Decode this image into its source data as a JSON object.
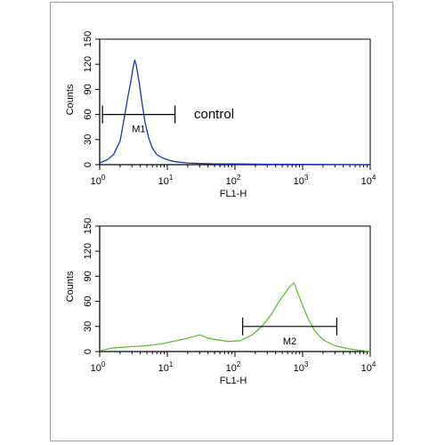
{
  "chart_data": [
    {
      "type": "area",
      "title": "",
      "annotation": "control",
      "xlabel": "FL1-H",
      "ylabel": "Counts",
      "xscale": "log",
      "xlim": [
        1,
        10000
      ],
      "ylim": [
        0,
        150
      ],
      "x_tick_labels": [
        {
          "base": "10",
          "exp": "0"
        },
        {
          "base": "10",
          "exp": "1"
        },
        {
          "base": "10",
          "exp": "2"
        },
        {
          "base": "10",
          "exp": "3"
        },
        {
          "base": "10",
          "exp": "4"
        }
      ],
      "y_ticks": [
        "0",
        "30",
        "60",
        "90",
        "120",
        "150"
      ],
      "color": "#1f2fb0",
      "marker": {
        "label": "M1",
        "x_start": 1.1,
        "x_end": 13,
        "y": 60
      },
      "series": [
        {
          "values": [
            [
              1.0,
              2
            ],
            [
              1.3,
              6
            ],
            [
              1.6,
              12
            ],
            [
              2.0,
              28
            ],
            [
              2.3,
              55
            ],
            [
              2.6,
              80
            ],
            [
              2.9,
              100
            ],
            [
              3.1,
              115
            ],
            [
              3.3,
              125
            ],
            [
              3.5,
              118
            ],
            [
              3.8,
              100
            ],
            [
              4.2,
              75
            ],
            [
              4.7,
              50
            ],
            [
              5.3,
              32
            ],
            [
              6.0,
              20
            ],
            [
              7.0,
              12
            ],
            [
              8.5,
              8
            ],
            [
              10,
              6
            ],
            [
              12,
              4
            ],
            [
              15,
              3
            ],
            [
              20,
              2
            ],
            [
              30,
              1.5
            ],
            [
              50,
              1
            ],
            [
              100,
              0.8
            ],
            [
              300,
              0.5
            ],
            [
              1000,
              0.3
            ],
            [
              10000,
              0
            ]
          ]
        }
      ]
    },
    {
      "type": "area",
      "title": "",
      "xlabel": "FL1-H",
      "ylabel": "Counts",
      "xscale": "log",
      "xlim": [
        1,
        10000
      ],
      "ylim": [
        0,
        150
      ],
      "x_tick_labels": [
        {
          "base": "10",
          "exp": "0"
        },
        {
          "base": "10",
          "exp": "1"
        },
        {
          "base": "10",
          "exp": "2"
        },
        {
          "base": "10",
          "exp": "3"
        },
        {
          "base": "10",
          "exp": "4"
        }
      ],
      "y_ticks": [
        "0",
        "30",
        "60",
        "90",
        "120",
        "150"
      ],
      "color": "#5cbf3a",
      "marker": {
        "label": "M2",
        "x_start": 130,
        "x_end": 3200,
        "y": 30
      },
      "series": [
        {
          "values": [
            [
              1.0,
              1
            ],
            [
              1.5,
              4
            ],
            [
              2,
              5
            ],
            [
              3,
              6
            ],
            [
              5,
              7
            ],
            [
              8,
              9
            ],
            [
              12,
              12
            ],
            [
              20,
              16
            ],
            [
              30,
              20
            ],
            [
              40,
              16
            ],
            [
              55,
              14
            ],
            [
              80,
              12
            ],
            [
              120,
              13
            ],
            [
              180,
              20
            ],
            [
              250,
              30
            ],
            [
              350,
              45
            ],
            [
              450,
              60
            ],
            [
              550,
              70
            ],
            [
              650,
              78
            ],
            [
              750,
              82
            ],
            [
              850,
              70
            ],
            [
              1000,
              55
            ],
            [
              1200,
              40
            ],
            [
              1500,
              25
            ],
            [
              2000,
              14
            ],
            [
              3000,
              7
            ],
            [
              5000,
              3
            ],
            [
              10000,
              0
            ]
          ]
        }
      ]
    }
  ]
}
